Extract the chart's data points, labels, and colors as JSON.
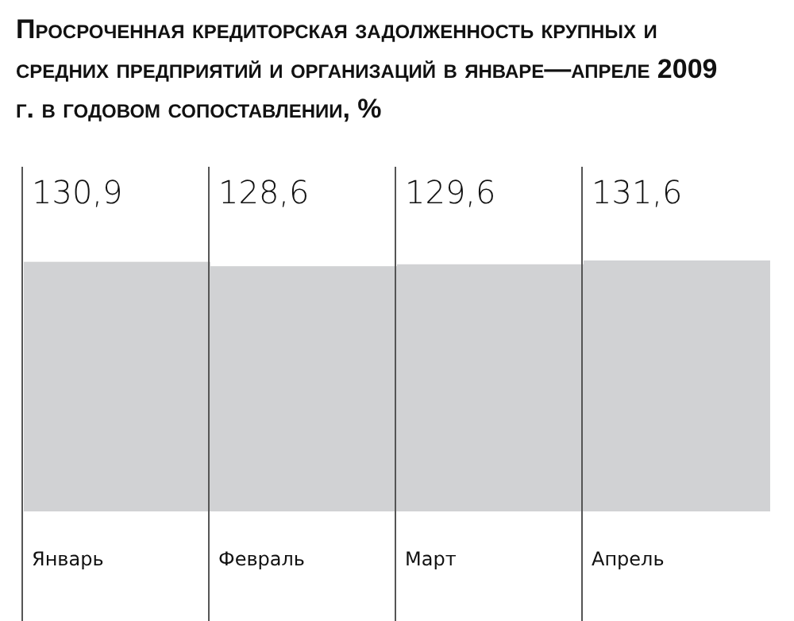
{
  "chart_data": {
    "type": "bar",
    "title": "Просроченная кредиторская задолженность крупных и средних предприятий и организаций в январе—апреле 2009 г. в годовом сопоставлении, %",
    "categories": [
      "Январь",
      "Февраль",
      "Март",
      "Апрель"
    ],
    "values": [
      130.9,
      128.6,
      129.6,
      131.6
    ],
    "value_labels": [
      "130,9",
      "128,6",
      "129,6",
      "131,6"
    ],
    "color": "#d1d2d4"
  }
}
